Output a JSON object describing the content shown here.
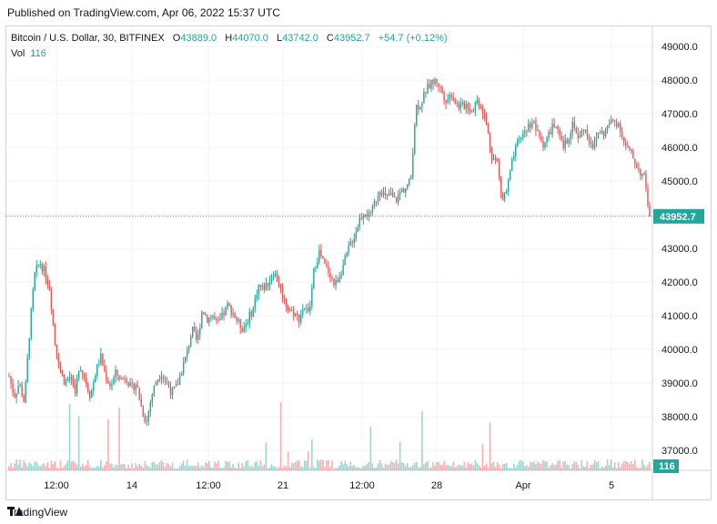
{
  "published": "Published on TradingView.com, Apr 06, 2022 15:37 UTC",
  "legend": {
    "symbol": "Bitcoin / U.S. Dollar, 30, BITFINEX",
    "o_label": "O",
    "o_value": "43889.0",
    "h_label": "H",
    "h_value": "44070.0",
    "l_label": "L",
    "l_value": "43742.0",
    "c_label": "C",
    "c_value": "43952.7",
    "change": "+54.7 (+0.12%)",
    "vol_label": "Vol",
    "vol_value": "116"
  },
  "footer_brand": "TradingView",
  "colors": {
    "up": "#26a69a",
    "down": "#ef5350",
    "grid": "#f0f3fa",
    "axis_text": "#131722"
  },
  "chart_data": {
    "type": "candlestick",
    "interval": "30",
    "y_ticks": [
      "49000.0",
      "48000.0",
      "47000.0",
      "46000.0",
      "45000.0",
      "44000.0",
      "43000.0",
      "42000.0",
      "41000.0",
      "40000.0",
      "39000.0",
      "38000.0",
      "37000.0"
    ],
    "x_ticks": [
      "12:00",
      "14",
      "12:00",
      "21",
      "12:00",
      "28",
      "Apr",
      "5"
    ],
    "ylim": [
      36400,
      49600
    ],
    "last_price": "43952.7",
    "last_volume": "116",
    "price_path": [
      [
        0,
        39200
      ],
      [
        3,
        38600
      ],
      [
        6,
        39000
      ],
      [
        9,
        38400
      ],
      [
        12,
        40500
      ],
      [
        15,
        42200
      ],
      [
        18,
        42600
      ],
      [
        21,
        42300
      ],
      [
        24,
        41800
      ],
      [
        27,
        40200
      ],
      [
        30,
        39400
      ],
      [
        33,
        39000
      ],
      [
        36,
        39200
      ],
      [
        39,
        38800
      ],
      [
        42,
        39500
      ],
      [
        45,
        39100
      ],
      [
        48,
        38600
      ],
      [
        51,
        39300
      ],
      [
        54,
        39800
      ],
      [
        57,
        39200
      ],
      [
        60,
        38900
      ],
      [
        63,
        39300
      ],
      [
        66,
        39100
      ],
      [
        69,
        39200
      ],
      [
        72,
        38800
      ],
      [
        75,
        39000
      ],
      [
        78,
        38300
      ],
      [
        81,
        37800
      ],
      [
        84,
        38600
      ],
      [
        87,
        39100
      ],
      [
        90,
        39300
      ],
      [
        93,
        39000
      ],
      [
        96,
        38700
      ],
      [
        99,
        38900
      ],
      [
        102,
        39400
      ],
      [
        105,
        39900
      ],
      [
        108,
        40600
      ],
      [
        111,
        40200
      ],
      [
        114,
        41200
      ],
      [
        117,
        40900
      ],
      [
        120,
        41000
      ],
      [
        123,
        40700
      ],
      [
        126,
        41000
      ],
      [
        129,
        41300
      ],
      [
        132,
        41100
      ],
      [
        135,
        40800
      ],
      [
        138,
        40600
      ],
      [
        141,
        40900
      ],
      [
        144,
        41200
      ],
      [
        147,
        41900
      ],
      [
        150,
        41800
      ],
      [
        153,
        42000
      ],
      [
        156,
        42300
      ],
      [
        159,
        42000
      ],
      [
        162,
        41500
      ],
      [
        165,
        41200
      ],
      [
        168,
        41100
      ],
      [
        171,
        40900
      ],
      [
        174,
        41300
      ],
      [
        177,
        41000
      ],
      [
        180,
        42400
      ],
      [
        183,
        42900
      ],
      [
        186,
        42500
      ],
      [
        189,
        42300
      ],
      [
        192,
        41900
      ],
      [
        195,
        42200
      ],
      [
        198,
        42600
      ],
      [
        201,
        43100
      ],
      [
        204,
        43400
      ],
      [
        207,
        43900
      ],
      [
        210,
        44100
      ],
      [
        213,
        43900
      ],
      [
        216,
        44400
      ],
      [
        219,
        44800
      ],
      [
        222,
        44500
      ],
      [
        225,
        44600
      ],
      [
        228,
        44400
      ],
      [
        231,
        44700
      ],
      [
        234,
        44800
      ],
      [
        237,
        45000
      ],
      [
        240,
        47200
      ],
      [
        243,
        47300
      ],
      [
        246,
        47700
      ],
      [
        249,
        47900
      ],
      [
        252,
        48000
      ],
      [
        255,
        47700
      ],
      [
        258,
        47400
      ],
      [
        261,
        47600
      ],
      [
        264,
        47300
      ],
      [
        267,
        47200
      ],
      [
        270,
        47300
      ],
      [
        273,
        47100
      ],
      [
        276,
        47400
      ],
      [
        279,
        47200
      ],
      [
        282,
        46600
      ],
      [
        285,
        45700
      ],
      [
        288,
        45600
      ],
      [
        291,
        44400
      ],
      [
        294,
        44800
      ],
      [
        297,
        45600
      ],
      [
        300,
        46100
      ],
      [
        303,
        46400
      ],
      [
        306,
        46600
      ],
      [
        309,
        46800
      ],
      [
        312,
        46400
      ],
      [
        315,
        46100
      ],
      [
        318,
        46300
      ],
      [
        321,
        46700
      ],
      [
        324,
        46400
      ],
      [
        327,
        46000
      ],
      [
        330,
        46300
      ],
      [
        333,
        46800
      ],
      [
        336,
        46200
      ],
      [
        339,
        46600
      ],
      [
        342,
        46300
      ],
      [
        345,
        46000
      ],
      [
        348,
        46500
      ],
      [
        351,
        46400
      ],
      [
        354,
        46700
      ],
      [
        357,
        46800
      ],
      [
        360,
        46700
      ],
      [
        363,
        46100
      ],
      [
        366,
        45900
      ],
      [
        369,
        45600
      ],
      [
        372,
        45300
      ],
      [
        375,
        45100
      ],
      [
        378,
        43950
      ]
    ]
  }
}
